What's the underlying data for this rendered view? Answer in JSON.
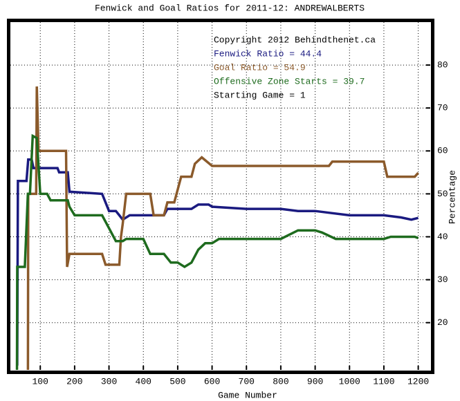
{
  "chart_data": {
    "type": "line",
    "title": "Fenwick and Goal Ratios for 2011-12: ANDREWALBERTS",
    "xlabel": "Game Number",
    "ylabel": "Percentage",
    "annotations": [
      "Copyright 2012 Behindthenet.ca",
      "Starting Game = 1"
    ],
    "xlim": [
      13,
      1235
    ],
    "ylim": [
      9,
      90
    ],
    "xticks": [
      100,
      200,
      300,
      400,
      500,
      600,
      700,
      800,
      900,
      1000,
      1100,
      1200
    ],
    "yticks": [
      20,
      30,
      40,
      50,
      60,
      70,
      80
    ],
    "grid": true,
    "series": [
      {
        "name": "Fenwick Ratio = 44.4",
        "color": "#1a1a80",
        "x": [
          33,
          35,
          60,
          65,
          75,
          80,
          150,
          155,
          180,
          185,
          280,
          290,
          300,
          320,
          330,
          340,
          360,
          460,
          470,
          540,
          560,
          590,
          600,
          700,
          800,
          850,
          900,
          950,
          1000,
          1100,
          1150,
          1180,
          1200
        ],
        "values": [
          10,
          53,
          53,
          58,
          58,
          56,
          56,
          55,
          55,
          50.5,
          50,
          48,
          46,
          46,
          45,
          44,
          45,
          45,
          46.5,
          46.5,
          47.5,
          47.5,
          47,
          46.5,
          46.5,
          46,
          46,
          45.5,
          45,
          45,
          44.5,
          44,
          44.4
        ]
      },
      {
        "name": "Goal Ratio = 54.9",
        "color": "#8b5a2b",
        "x": [
          64,
          65,
          88,
          90,
          95,
          140,
          175,
          178,
          185,
          280,
          290,
          330,
          335,
          340,
          350,
          420,
          430,
          460,
          470,
          490,
          510,
          540,
          550,
          570,
          600,
          700,
          800,
          940,
          950,
          1100,
          1110,
          1190,
          1200
        ],
        "values": [
          0,
          50,
          50,
          75,
          60,
          60,
          60,
          33,
          36,
          36,
          33.5,
          33.5,
          40,
          43,
          50,
          50,
          45,
          45,
          48,
          48,
          54,
          54,
          57,
          58.5,
          56.5,
          56.5,
          56.5,
          56.5,
          57.5,
          57.5,
          54,
          54,
          54.9
        ]
      },
      {
        "name": "Offensive Zone Starts = 39.7",
        "color": "#1e6b1e",
        "x": [
          32,
          33,
          55,
          64,
          70,
          78,
          90,
          100,
          120,
          130,
          180,
          185,
          200,
          280,
          300,
          320,
          340,
          350,
          400,
          420,
          460,
          480,
          500,
          520,
          540,
          560,
          580,
          600,
          620,
          800,
          850,
          900,
          920,
          960,
          1100,
          1120,
          1190,
          1200
        ],
        "values": [
          0,
          33,
          33,
          50,
          50,
          63.5,
          63,
          50,
          50,
          48.5,
          48.5,
          47,
          45,
          45,
          42,
          39,
          39,
          39.5,
          39.5,
          36,
          36,
          34,
          34,
          33,
          34,
          37,
          38.5,
          38.5,
          39.5,
          39.5,
          41.5,
          41.5,
          41,
          39.5,
          39.5,
          40,
          40,
          39.7
        ]
      }
    ]
  }
}
